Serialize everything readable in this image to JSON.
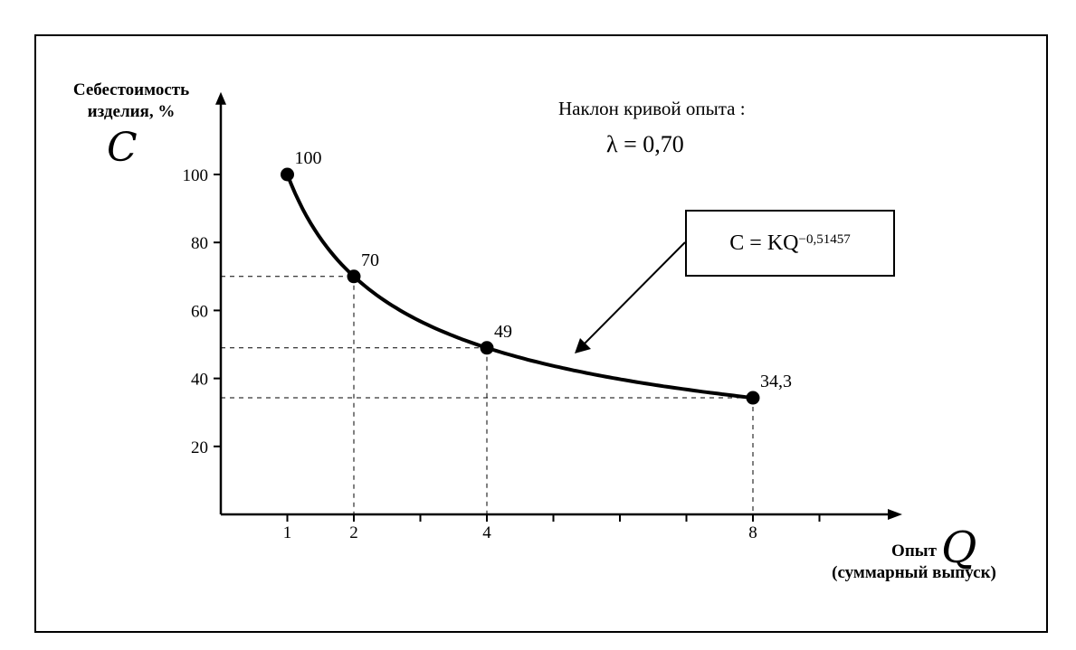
{
  "chart_data": {
    "type": "line",
    "ylabel": "Себестоимость изделия, %",
    "ylabel_symbol": "C",
    "xlabel_line1": "Опыт",
    "xlabel_line2": "(суммарный выпуск)",
    "xlabel_symbol": "Q",
    "x": [
      1,
      2,
      4,
      8
    ],
    "y": [
      100,
      70,
      49,
      34.3
    ],
    "data_labels": [
      "100",
      "70",
      "49",
      "34,3"
    ],
    "x_tick_labels": [
      "1",
      "2",
      "4",
      "8"
    ],
    "y_ticks": [
      20,
      40,
      60,
      80,
      100
    ],
    "y_tick_labels": [
      "20",
      "40",
      "60",
      "80",
      "100"
    ],
    "x_minor_ticks": [
      3,
      5,
      6,
      7,
      9
    ],
    "ylim": [
      0,
      120
    ],
    "xlim": [
      0,
      10
    ],
    "grid": false,
    "reference_lines": "dashed"
  },
  "annotations": {
    "slope_title": "Наклон кривой опыта :",
    "slope_value": "λ = 0,70",
    "formula_base": "C = KQ",
    "formula_exponent": "−0,51457"
  }
}
